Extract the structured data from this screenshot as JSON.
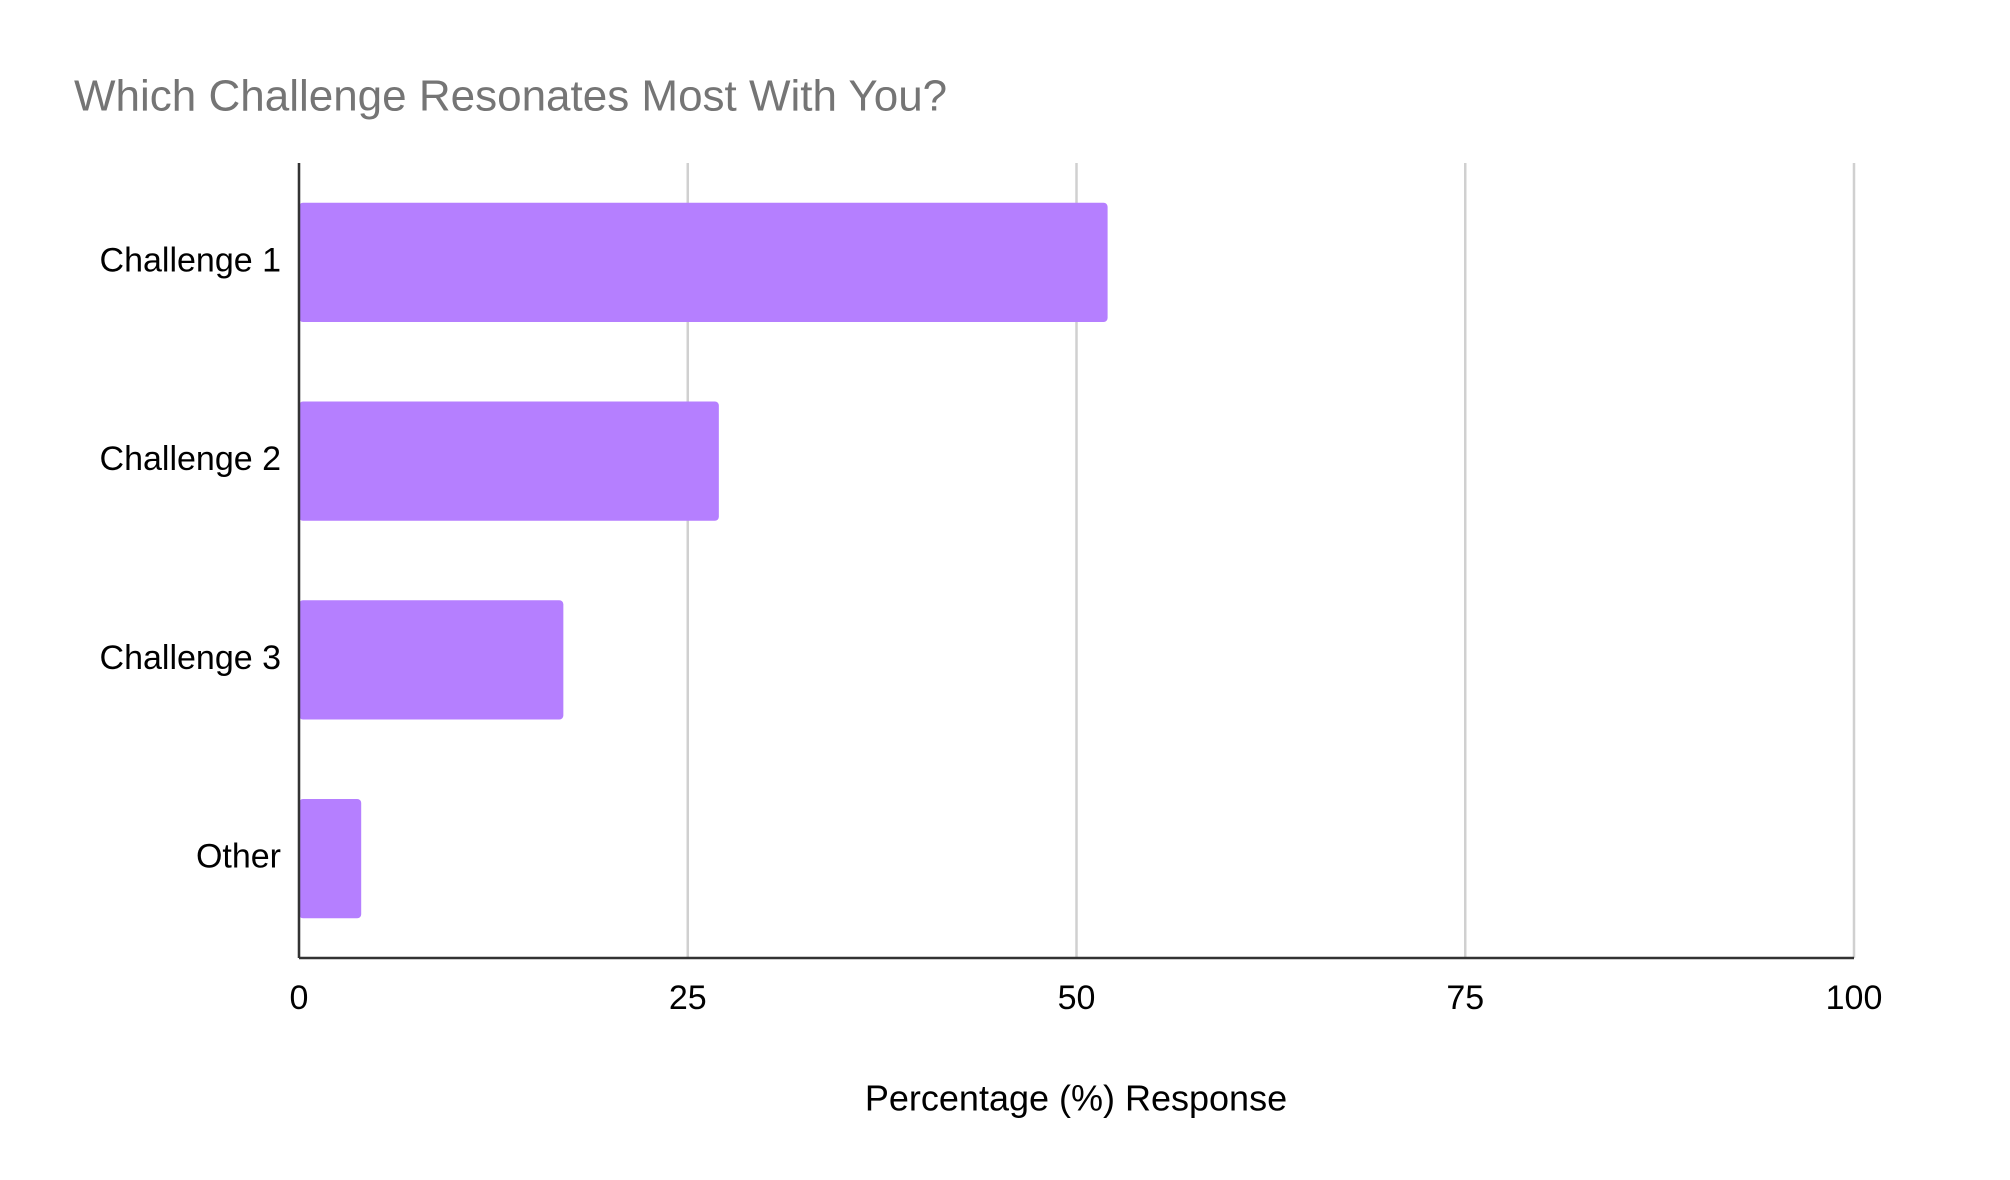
{
  "chart_data": {
    "type": "bar",
    "orientation": "horizontal",
    "title": "Which Challenge Resonates Most With You?",
    "x_label": "Percentage (%) Response",
    "categories": [
      "Challenge 1",
      "Challenge 2",
      "Challenge 3",
      "Other"
    ],
    "values": [
      52,
      27,
      17,
      4
    ],
    "color": "#b57fff",
    "xlim": [
      0,
      100
    ],
    "xticks": [
      0,
      25,
      50,
      75,
      100
    ],
    "grid": true
  }
}
